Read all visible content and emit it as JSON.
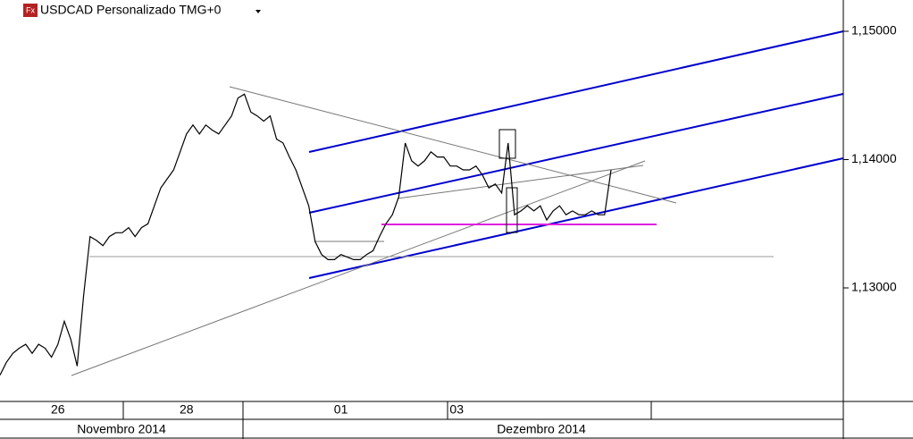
{
  "chart_data": {
    "type": "line",
    "title": "USDCAD Personalizado TMG+0",
    "color": "#000000",
    "categories": [
      null,
      null,
      null,
      null,
      null,
      null,
      null,
      null,
      null,
      "26",
      null,
      null,
      null,
      null,
      null,
      null,
      null,
      null,
      null,
      null,
      null,
      null,
      null,
      null,
      null,
      null,
      null,
      null,
      null,
      "28",
      null,
      null,
      null,
      null,
      null,
      null,
      null,
      null,
      null,
      null,
      null,
      null,
      null,
      null,
      null,
      null,
      null,
      null,
      null,
      null,
      null,
      null,
      null,
      "01",
      null,
      null,
      null,
      null,
      null,
      null,
      null,
      null,
      null,
      null,
      null,
      null,
      null,
      null,
      null,
      null,
      null,
      "03",
      null,
      null,
      null,
      null,
      null,
      null,
      null,
      null,
      null,
      null,
      null,
      null,
      null,
      null,
      null,
      null,
      null,
      null,
      null,
      null,
      null,
      null,
      null,
      null
    ],
    "values": [
      1.1232,
      1.1242,
      1.1249,
      1.1253,
      1.1256,
      1.1249,
      1.1256,
      1.1253,
      1.1246,
      1.1256,
      1.1274,
      1.126,
      1.1239,
      1.1294,
      1.134,
      1.1337,
      1.1333,
      1.134,
      1.1343,
      1.1343,
      1.1347,
      1.134,
      1.1347,
      1.135,
      1.1364,
      1.1378,
      1.1385,
      1.1392,
      1.1406,
      1.142,
      1.1427,
      1.142,
      1.1427,
      1.1423,
      1.142,
      1.1427,
      1.1434,
      1.1448,
      1.1451,
      1.1437,
      1.1434,
      1.143,
      1.1434,
      1.1416,
      1.1413,
      1.1402,
      1.1392,
      1.1378,
      1.1364,
      1.1336,
      1.1326,
      1.1322,
      1.1322,
      1.1326,
      1.1324,
      1.1322,
      1.1322,
      1.1326,
      1.1329,
      1.134,
      1.135,
      1.1357,
      1.1371,
      1.1413,
      1.1399,
      1.1395,
      1.1399,
      1.1406,
      1.1402,
      1.1402,
      1.1395,
      1.1395,
      1.1392,
      1.1392,
      1.1395,
      1.1388,
      1.1378,
      1.1381,
      1.1374,
      1.1413,
      1.1357,
      1.136,
      1.1364,
      1.136,
      1.1364,
      1.1353,
      1.136,
      1.1364,
      1.1357,
      1.136,
      1.1357,
      1.1357,
      1.136,
      1.1357,
      1.1357,
      1.1392
    ],
    "ylim": [
      1.12115,
      1.15244
    ],
    "yticks": [
      {
        "value": 1.15,
        "label": "1,15000"
      },
      {
        "value": 1.14,
        "label": "1,14000"
      },
      {
        "value": 1.13,
        "label": "1,13000"
      }
    ],
    "months": [
      "Novembro 2014",
      "Dezembro 2014"
    ]
  }
}
